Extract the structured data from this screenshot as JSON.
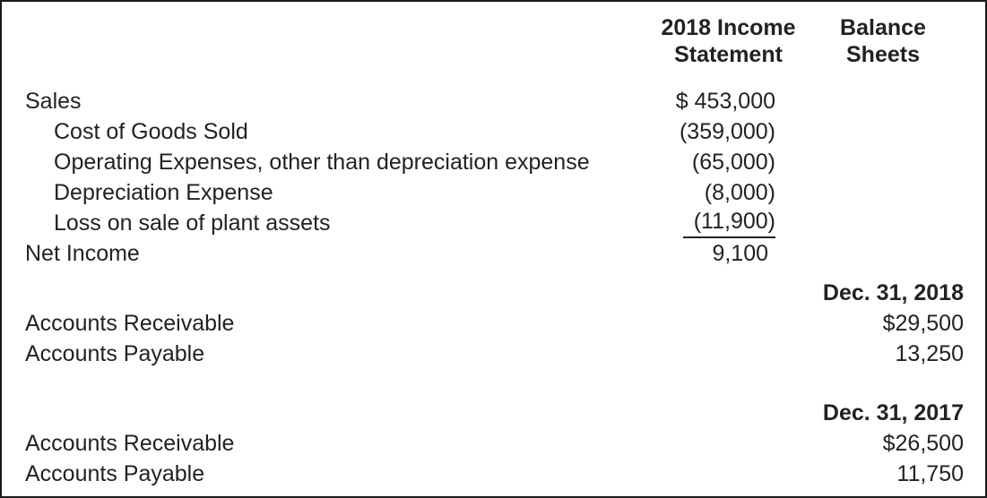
{
  "page": {
    "text_color": "#242122",
    "border_color": "#1b1b1b",
    "background_color": "#ffffff"
  },
  "headers": {
    "income_statement": "2018 Income Statement",
    "balance_sheets": "Balance Sheets"
  },
  "income_statement": {
    "rows": [
      {
        "label": "Sales",
        "indent": false,
        "value": "$ 453,000"
      },
      {
        "label": "Cost of Goods Sold",
        "indent": true,
        "value": "(359,000)"
      },
      {
        "label": "Operating Expenses, other than depreciation expense",
        "indent": true,
        "value": "(65,000)"
      },
      {
        "label": "Depreciation Expense",
        "indent": true,
        "value": "(8,000)"
      },
      {
        "label": "Loss on sale of plant assets",
        "indent": true,
        "value": "(11,900)",
        "underline": true
      },
      {
        "label": "Net Income",
        "indent": false,
        "value": "9,100"
      }
    ]
  },
  "balance_sheets": {
    "sections": [
      {
        "date_header": "Dec. 31, 2018",
        "rows": [
          {
            "label": "Accounts Receivable",
            "value": "$29,500"
          },
          {
            "label": "Accounts Payable",
            "value": "13,250"
          }
        ]
      },
      {
        "date_header": "Dec. 31, 2017",
        "rows": [
          {
            "label": "Accounts Receivable",
            "value": "$26,500"
          },
          {
            "label": "Accounts Payable",
            "value": "11,750"
          }
        ]
      }
    ]
  }
}
